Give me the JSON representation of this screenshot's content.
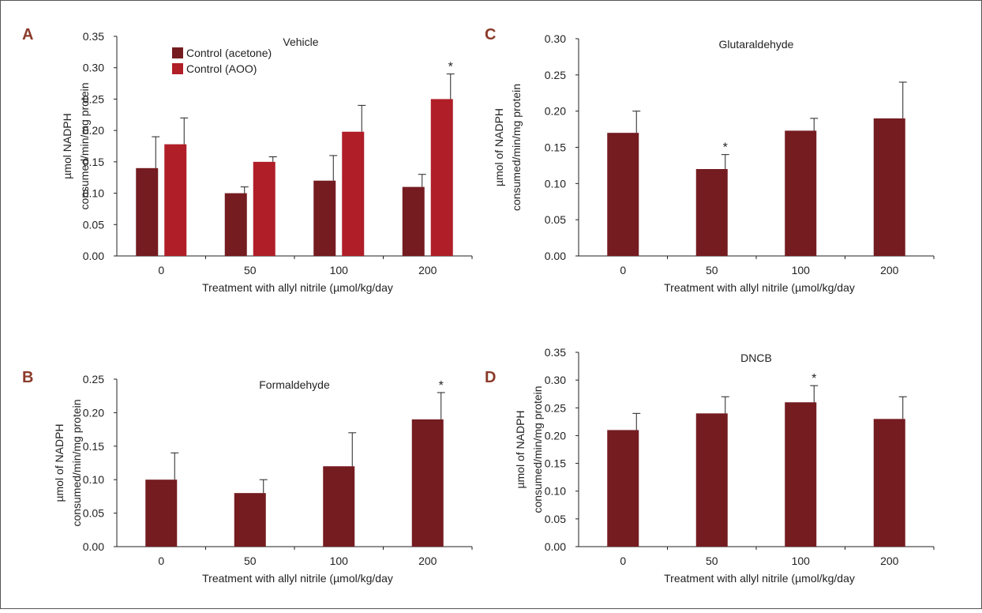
{
  "colors": {
    "dark_red": "#751c21",
    "red": "#b01e28",
    "panel_letter": "#8b3a2a",
    "axis": "#222222"
  },
  "chart_data": [
    {
      "panel": "A",
      "type": "bar",
      "title": "Vehicle",
      "xlabel": "Treatment with allyl nitrile (µmol/kg/day",
      "ylabel_lines": [
        "µmol NADPH",
        "consumed/min/mg protein"
      ],
      "categories": [
        "0",
        "50",
        "100",
        "200"
      ],
      "ylim": [
        0,
        0.35
      ],
      "yticks": [
        "0.00",
        "0.05",
        "0.10",
        "0.15",
        "0.20",
        "0.25",
        "0.30",
        "0.35"
      ],
      "legend": "top-left",
      "series": [
        {
          "name": "Control (acetone)",
          "color": "#751c21",
          "values": [
            0.14,
            0.1,
            0.12,
            0.11
          ],
          "error": [
            0.05,
            0.01,
            0.04,
            0.02
          ],
          "sig": [
            "",
            "",
            "",
            ""
          ]
        },
        {
          "name": "Control (AOO)",
          "color": "#b01e28",
          "values": [
            0.178,
            0.15,
            0.198,
            0.25
          ],
          "error": [
            0.042,
            0.008,
            0.042,
            0.04
          ],
          "sig": [
            "",
            "",
            "",
            "*"
          ]
        }
      ]
    },
    {
      "panel": "B",
      "type": "bar",
      "title": "Formaldehyde",
      "xlabel": "Treatment with allyl nitrile (µmol/kg/day",
      "ylabel_lines": [
        "µmol of NADPH",
        "consumed/min/mg protein"
      ],
      "categories": [
        "0",
        "50",
        "100",
        "200"
      ],
      "ylim": [
        0,
        0.25
      ],
      "yticks": [
        "0.00",
        "0.05",
        "0.10",
        "0.15",
        "0.20",
        "0.25"
      ],
      "series": [
        {
          "color": "#751c21",
          "values": [
            0.1,
            0.08,
            0.12,
            0.19
          ],
          "error": [
            0.04,
            0.02,
            0.05,
            0.04
          ],
          "sig": [
            "",
            "",
            "",
            "*"
          ]
        }
      ]
    },
    {
      "panel": "C",
      "type": "bar",
      "title": "Glutaraldehyde",
      "xlabel": "Treatment with allyl nitrile (µmol/kg/day",
      "ylabel_lines": [
        "µmol of NADPH",
        "consumed/min/mg protein"
      ],
      "categories": [
        "0",
        "50",
        "100",
        "200"
      ],
      "ylim": [
        0,
        0.3
      ],
      "yticks": [
        "0.00",
        "0.05",
        "0.10",
        "0.15",
        "0.20",
        "0.25",
        "0.30"
      ],
      "series": [
        {
          "color": "#751c21",
          "values": [
            0.17,
            0.12,
            0.173,
            0.19
          ],
          "error": [
            0.03,
            0.02,
            0.017,
            0.05
          ],
          "sig": [
            "",
            "*",
            "",
            ""
          ]
        }
      ]
    },
    {
      "panel": "D",
      "type": "bar",
      "title": "DNCB",
      "xlabel": "Treatment with allyl nitrile (µmol/kg/day",
      "ylabel_lines": [
        "µmol of NADPH",
        "consumed/min/mg protein"
      ],
      "categories": [
        "0",
        "50",
        "100",
        "200"
      ],
      "ylim": [
        0,
        0.35
      ],
      "yticks": [
        "0.00",
        "0.05",
        "0.10",
        "0.15",
        "0.20",
        "0.25",
        "0.30",
        "0.35"
      ],
      "series": [
        {
          "color": "#751c21",
          "values": [
            0.21,
            0.24,
            0.26,
            0.23
          ],
          "error": [
            0.03,
            0.03,
            0.03,
            0.04
          ],
          "sig": [
            "",
            "",
            "*",
            ""
          ]
        }
      ]
    }
  ]
}
